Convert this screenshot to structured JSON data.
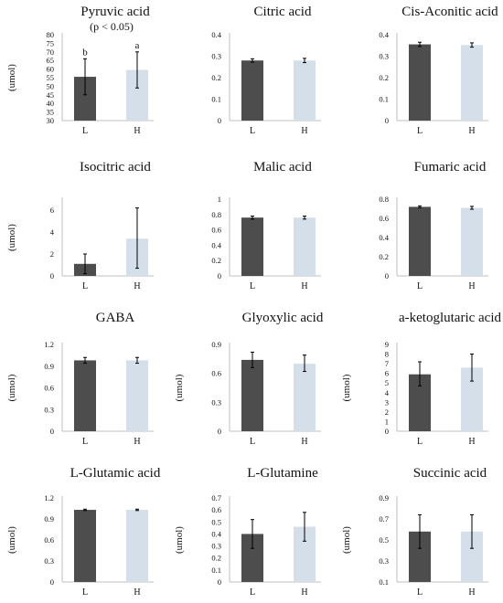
{
  "chart_data": [
    {
      "type": "bar",
      "title": "Pyruvic acid",
      "subtitle": "(p < 0.05)",
      "ylabel": "(umol)",
      "ylim": [
        30,
        80
      ],
      "yticks": [
        "30",
        "35",
        "40",
        "45",
        "50",
        "55",
        "60",
        "65",
        "70",
        "75",
        "80"
      ],
      "categories": [
        "L",
        "H"
      ],
      "values": [
        55.5,
        59.5
      ],
      "err_low": [
        45,
        49
      ],
      "err_high": [
        66,
        70
      ],
      "labels": [
        "b",
        "a"
      ],
      "colors": [
        "#4d4d4d",
        "#d5dfea"
      ]
    },
    {
      "type": "bar",
      "title": "Citric acid",
      "ylabel": "",
      "ylim": [
        0,
        0.4
      ],
      "yticks": [
        "0",
        "0.1",
        "0.2",
        "0.3",
        "0.4"
      ],
      "categories": [
        "L",
        "H"
      ],
      "values": [
        0.28,
        0.28
      ],
      "err_low": [
        0.272,
        0.27
      ],
      "err_high": [
        0.288,
        0.29
      ],
      "colors": [
        "#4d4d4d",
        "#d5dfea"
      ]
    },
    {
      "type": "bar",
      "title": "Cis-Aconitic acid",
      "ylabel": "",
      "ylim": [
        0,
        0.4
      ],
      "yticks": [
        "0",
        "0.1",
        "0.2",
        "0.3",
        "0.4"
      ],
      "categories": [
        "L",
        "H"
      ],
      "values": [
        0.355,
        0.352
      ],
      "err_low": [
        0.345,
        0.342
      ],
      "err_high": [
        0.365,
        0.362
      ],
      "colors": [
        "#4d4d4d",
        "#d5dfea"
      ]
    },
    {
      "type": "bar",
      "title": "Isocitric acid",
      "ylabel": "(umol)",
      "ylim": [
        0,
        7
      ],
      "yticks": [
        "0",
        "2",
        "4",
        "6"
      ],
      "categories": [
        "L",
        "H"
      ],
      "values": [
        1.1,
        3.4
      ],
      "err_low": [
        0.2,
        0.7
      ],
      "err_high": [
        2.0,
        6.2
      ],
      "colors": [
        "#4d4d4d",
        "#d5dfea"
      ]
    },
    {
      "type": "bar",
      "title": "Malic acid",
      "ylabel": "",
      "ylim": [
        0,
        1
      ],
      "yticks": [
        "0",
        "0.2",
        "0.4",
        "0.6",
        "0.8",
        "1"
      ],
      "categories": [
        "L",
        "H"
      ],
      "values": [
        0.76,
        0.76
      ],
      "err_low": [
        0.74,
        0.74
      ],
      "err_high": [
        0.78,
        0.78
      ],
      "colors": [
        "#4d4d4d",
        "#d5dfea"
      ]
    },
    {
      "type": "bar",
      "title": "Fumaric acid",
      "ylabel": "",
      "ylim": [
        0,
        0.8
      ],
      "yticks": [
        "0",
        "0.2",
        "0.4",
        "0.6",
        "0.8"
      ],
      "categories": [
        "L",
        "H"
      ],
      "values": [
        0.72,
        0.71
      ],
      "err_low": [
        0.71,
        0.695
      ],
      "err_high": [
        0.73,
        0.725
      ],
      "colors": [
        "#4d4d4d",
        "#d5dfea"
      ]
    },
    {
      "type": "bar",
      "title": "GABA",
      "ylabel": "(umol)",
      "ylim": [
        0,
        1.2
      ],
      "yticks": [
        "0",
        "0.3",
        "0.6",
        "0.9",
        "1.2"
      ],
      "categories": [
        "L",
        "H"
      ],
      "values": [
        0.98,
        0.98
      ],
      "err_low": [
        0.94,
        0.94
      ],
      "err_high": [
        1.02,
        1.02
      ],
      "colors": [
        "#4d4d4d",
        "#d5dfea"
      ]
    },
    {
      "type": "bar",
      "title": "Glyoxylic acid",
      "ylabel": "(umol)",
      "ylim": [
        0,
        0.9
      ],
      "yticks": [
        "0",
        "0.3",
        "0.6",
        "0.9"
      ],
      "categories": [
        "L",
        "H"
      ],
      "values": [
        0.74,
        0.7
      ],
      "err_low": [
        0.66,
        0.62
      ],
      "err_high": [
        0.82,
        0.79
      ],
      "colors": [
        "#4d4d4d",
        "#d5dfea"
      ]
    },
    {
      "type": "bar",
      "title": "a-ketoglutaric acid",
      "ylabel": "(umol)",
      "ylim": [
        0,
        9
      ],
      "yticks": [
        "0",
        "1",
        "2",
        "3",
        "4",
        "5",
        "6",
        "7",
        "8",
        "9"
      ],
      "categories": [
        "L",
        "H"
      ],
      "values": [
        5.9,
        6.6
      ],
      "err_low": [
        4.7,
        5.2
      ],
      "err_high": [
        7.2,
        8.0
      ],
      "colors": [
        "#4d4d4d",
        "#d5dfea"
      ]
    },
    {
      "type": "bar",
      "title": "L-Glutamic acid",
      "ylabel": "(umol)",
      "ylim": [
        0,
        1.2
      ],
      "yticks": [
        "0",
        "0.3",
        "0.6",
        "0.9",
        "1.2"
      ],
      "categories": [
        "L",
        "H"
      ],
      "values": [
        1.03,
        1.03
      ],
      "err_low": [
        1.02,
        1.02
      ],
      "err_high": [
        1.04,
        1.04
      ],
      "colors": [
        "#4d4d4d",
        "#d5dfea"
      ]
    },
    {
      "type": "bar",
      "title": "L-Glutamine",
      "ylabel": "(umol)",
      "ylim": [
        0,
        0.7
      ],
      "yticks": [
        "0",
        "0.1",
        "0.2",
        "0.3",
        "0.4",
        "0.5",
        "0.6",
        "0.7"
      ],
      "categories": [
        "L",
        "H"
      ],
      "values": [
        0.4,
        0.46
      ],
      "err_low": [
        0.28,
        0.34
      ],
      "err_high": [
        0.52,
        0.58
      ],
      "colors": [
        "#4d4d4d",
        "#d5dfea"
      ]
    },
    {
      "type": "bar",
      "title": "Succinic acid",
      "ylabel": "(umol)",
      "ylim": [
        0.1,
        0.9
      ],
      "yticks": [
        "0.1",
        "0.3",
        "0.5",
        "0.7",
        "0.9"
      ],
      "categories": [
        "L",
        "H"
      ],
      "values": [
        0.58,
        0.58
      ],
      "err_low": [
        0.42,
        0.42
      ],
      "err_high": [
        0.74,
        0.74
      ],
      "colors": [
        "#4d4d4d",
        "#d5dfea"
      ]
    }
  ]
}
